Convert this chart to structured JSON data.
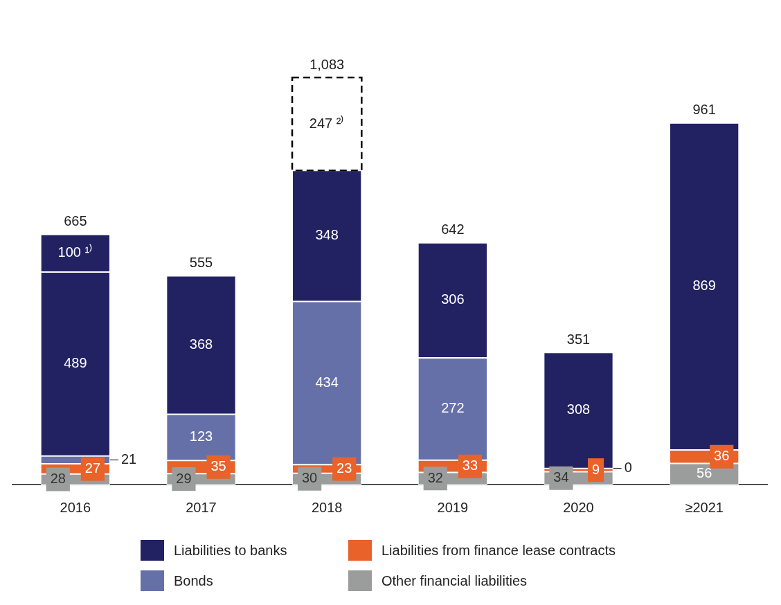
{
  "chart_data": {
    "type": "bar",
    "stacked": true,
    "data_labels": true,
    "legend": "bottom",
    "categories": [
      "2016",
      "2017",
      "2018",
      "2019",
      "2020",
      "≥2021"
    ],
    "series": [
      {
        "name": "Other financial liabilities",
        "color": "#9b9d9d",
        "values": [
          28,
          29,
          30,
          32,
          34,
          56
        ]
      },
      {
        "name": "Liabilities from finance lease contracts",
        "color": "#e8622a",
        "values": [
          27,
          35,
          23,
          33,
          9,
          36
        ]
      },
      {
        "name": "Bonds",
        "color": "#6670a8",
        "values": [
          21,
          123,
          434,
          272,
          0,
          null
        ],
        "value_labels": [
          "21",
          "123",
          "434",
          "272",
          null,
          null
        ]
      },
      {
        "name": "Liabilities to banks",
        "color": "#222263",
        "values": [
          489,
          368,
          348,
          306,
          308,
          869
        ]
      },
      {
        "color": "#222263",
        "values": [
          100,
          null,
          null,
          null,
          null,
          null
        ],
        "value_labels": [
          "100 ¹⁾",
          null,
          null,
          null,
          null,
          null
        ]
      },
      {
        "color": "#000000",
        "line_style": "dashed",
        "values": [
          null,
          null,
          247,
          null,
          null,
          null
        ],
        "value_labels": [
          null,
          null,
          "247 ²⁾",
          null,
          null,
          null
        ]
      }
    ],
    "annotations": [
      "0"
    ],
    "totals": [
      "665",
      "555",
      "1,083",
      "642",
      "351",
      "961"
    ]
  }
}
